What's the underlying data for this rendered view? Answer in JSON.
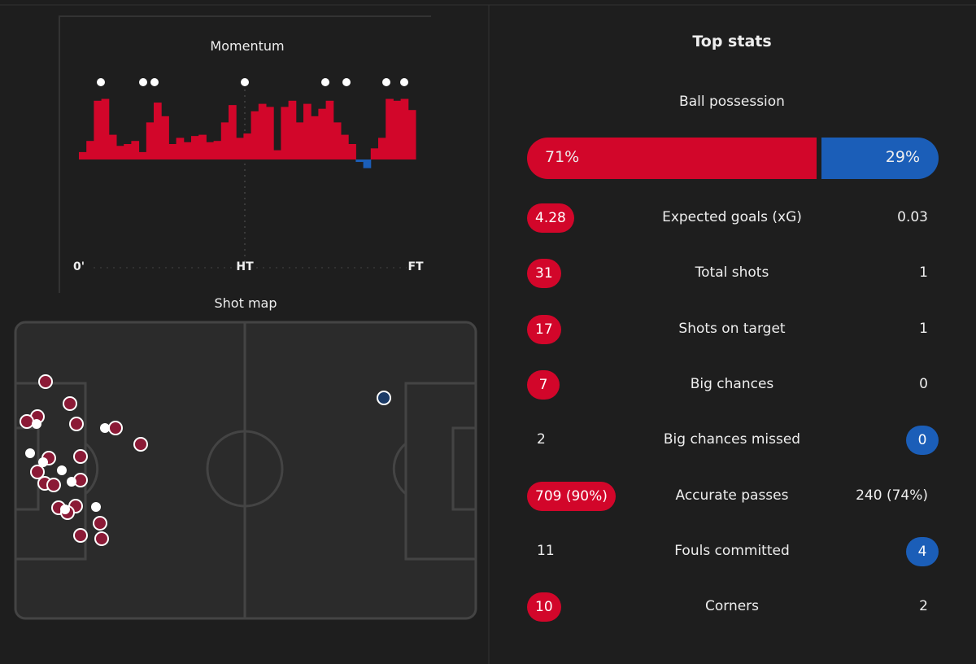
{
  "momentum": {
    "title": "Momentum",
    "labels": [
      "0'",
      "HT",
      "FT"
    ],
    "values": [
      12,
      30,
      95,
      98,
      40,
      22,
      25,
      30,
      12,
      60,
      92,
      70,
      25,
      35,
      28,
      38,
      40,
      28,
      30,
      60,
      88,
      35,
      42,
      78,
      90,
      85,
      15,
      85,
      95,
      60,
      90,
      70,
      82,
      95,
      60,
      40,
      25,
      -4,
      -14,
      18,
      35,
      98,
      95,
      98,
      80
    ],
    "home_color": "#d2062a",
    "away_color": "#1b5eb8"
  },
  "shot_map": {
    "title": "Shot map"
  },
  "top_stats": {
    "title": "Top stats",
    "possession": {
      "label": "Ball possession",
      "home": {
        "value": 71,
        "label": "71%"
      },
      "away": {
        "value": 29,
        "label": "29%"
      }
    },
    "rows": [
      {
        "home": "4.28",
        "label": "Expected goals (xG)",
        "away": "0.03",
        "highlight": "home"
      },
      {
        "home": "31",
        "label": "Total shots",
        "away": "1",
        "highlight": "home"
      },
      {
        "home": "17",
        "label": "Shots on target",
        "away": "1",
        "highlight": "home"
      },
      {
        "home": "7",
        "label": "Big chances",
        "away": "0",
        "highlight": "home"
      },
      {
        "home": "2",
        "label": "Big chances missed",
        "away": "0",
        "highlight": "away"
      },
      {
        "home": "709 (90%)",
        "label": "Accurate passes",
        "away": "240 (74%)",
        "highlight": "home"
      },
      {
        "home": "11",
        "label": "Fouls committed",
        "away": "4",
        "highlight": "away"
      },
      {
        "home": "10",
        "label": "Corners",
        "away": "2",
        "highlight": "home"
      }
    ]
  }
}
